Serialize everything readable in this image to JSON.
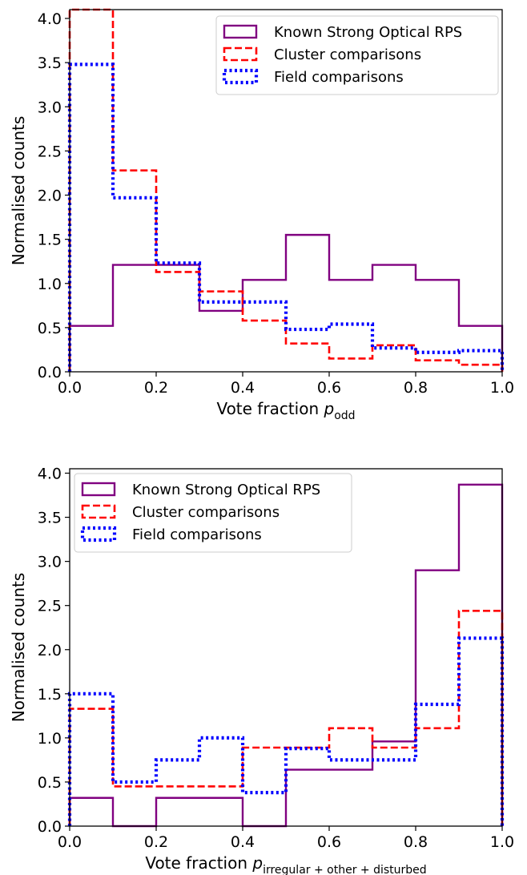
{
  "chart_data": [
    {
      "type": "histogram-step",
      "xlabel_main": "Vote fraction ",
      "xlabel_symbol": "p",
      "xlabel_subscript": "odd",
      "ylabel": "Normalised counts",
      "xlim": [
        0.0,
        1.0
      ],
      "ylim": [
        0.0,
        4.1
      ],
      "bin_edges": [
        0.0,
        0.1,
        0.2,
        0.3,
        0.4,
        0.5,
        0.6,
        0.7,
        0.8,
        0.9,
        1.0
      ],
      "xticks": [
        "0.0",
        "0.2",
        "0.4",
        "0.6",
        "0.8",
        "1.0"
      ],
      "xtick_values": [
        0.0,
        0.2,
        0.4,
        0.6,
        0.8,
        1.0
      ],
      "yticks": [
        "0.0",
        "0.5",
        "1.0",
        "1.5",
        "2.0",
        "2.5",
        "3.0",
        "3.5",
        "4.0"
      ],
      "ytick_values": [
        0.0,
        0.5,
        1.0,
        1.5,
        2.0,
        2.5,
        3.0,
        3.5,
        4.0
      ],
      "legend_position": "top-right",
      "series": [
        {
          "name": "Known Strong Optical RPS",
          "color": "#800080",
          "style": "solid",
          "values": [
            0.52,
            1.21,
            1.21,
            0.69,
            1.04,
            1.55,
            1.04,
            1.21,
            1.04,
            0.52
          ]
        },
        {
          "name": "Cluster comparisons",
          "color": "#ff0000",
          "style": "dashed",
          "values": [
            4.1,
            2.28,
            1.13,
            0.91,
            0.58,
            0.32,
            0.15,
            0.3,
            0.13,
            0.08
          ]
        },
        {
          "name": "Field comparisons",
          "color": "#0000ff",
          "style": "dotted",
          "values": [
            3.48,
            1.97,
            1.23,
            0.79,
            0.79,
            0.48,
            0.54,
            0.27,
            0.22,
            0.24
          ]
        }
      ]
    },
    {
      "type": "histogram-step",
      "xlabel_main": "Vote fraction ",
      "xlabel_symbol": "p",
      "xlabel_subscript": "irregular + other + disturbed",
      "ylabel": "Normalised counts",
      "xlim": [
        0.0,
        1.0
      ],
      "ylim": [
        0.0,
        4.05
      ],
      "bin_edges": [
        0.0,
        0.1,
        0.2,
        0.3,
        0.4,
        0.5,
        0.6,
        0.7,
        0.8,
        0.9,
        1.0
      ],
      "xticks": [
        "0.0",
        "0.2",
        "0.4",
        "0.6",
        "0.8",
        "1.0"
      ],
      "xtick_values": [
        0.0,
        0.2,
        0.4,
        0.6,
        0.8,
        1.0
      ],
      "yticks": [
        "0.0",
        "0.5",
        "1.0",
        "1.5",
        "2.0",
        "2.5",
        "3.0",
        "3.5",
        "4.0"
      ],
      "ytick_values": [
        0.0,
        0.5,
        1.0,
        1.5,
        2.0,
        2.5,
        3.0,
        3.5,
        4.0
      ],
      "legend_position": "top-left",
      "series": [
        {
          "name": "Known Strong Optical RPS",
          "color": "#800080",
          "style": "solid",
          "values": [
            0.32,
            0.0,
            0.32,
            0.32,
            0.0,
            0.64,
            0.64,
            0.96,
            2.9,
            3.87
          ]
        },
        {
          "name": "Cluster comparisons",
          "color": "#ff0000",
          "style": "dashed",
          "values": [
            1.33,
            0.45,
            0.45,
            0.45,
            0.89,
            0.89,
            1.11,
            0.89,
            1.11,
            2.44
          ]
        },
        {
          "name": "Field comparisons",
          "color": "#0000ff",
          "style": "dotted",
          "values": [
            1.5,
            0.5,
            0.75,
            1.0,
            0.38,
            0.88,
            0.75,
            0.75,
            1.38,
            2.13
          ]
        }
      ]
    }
  ]
}
